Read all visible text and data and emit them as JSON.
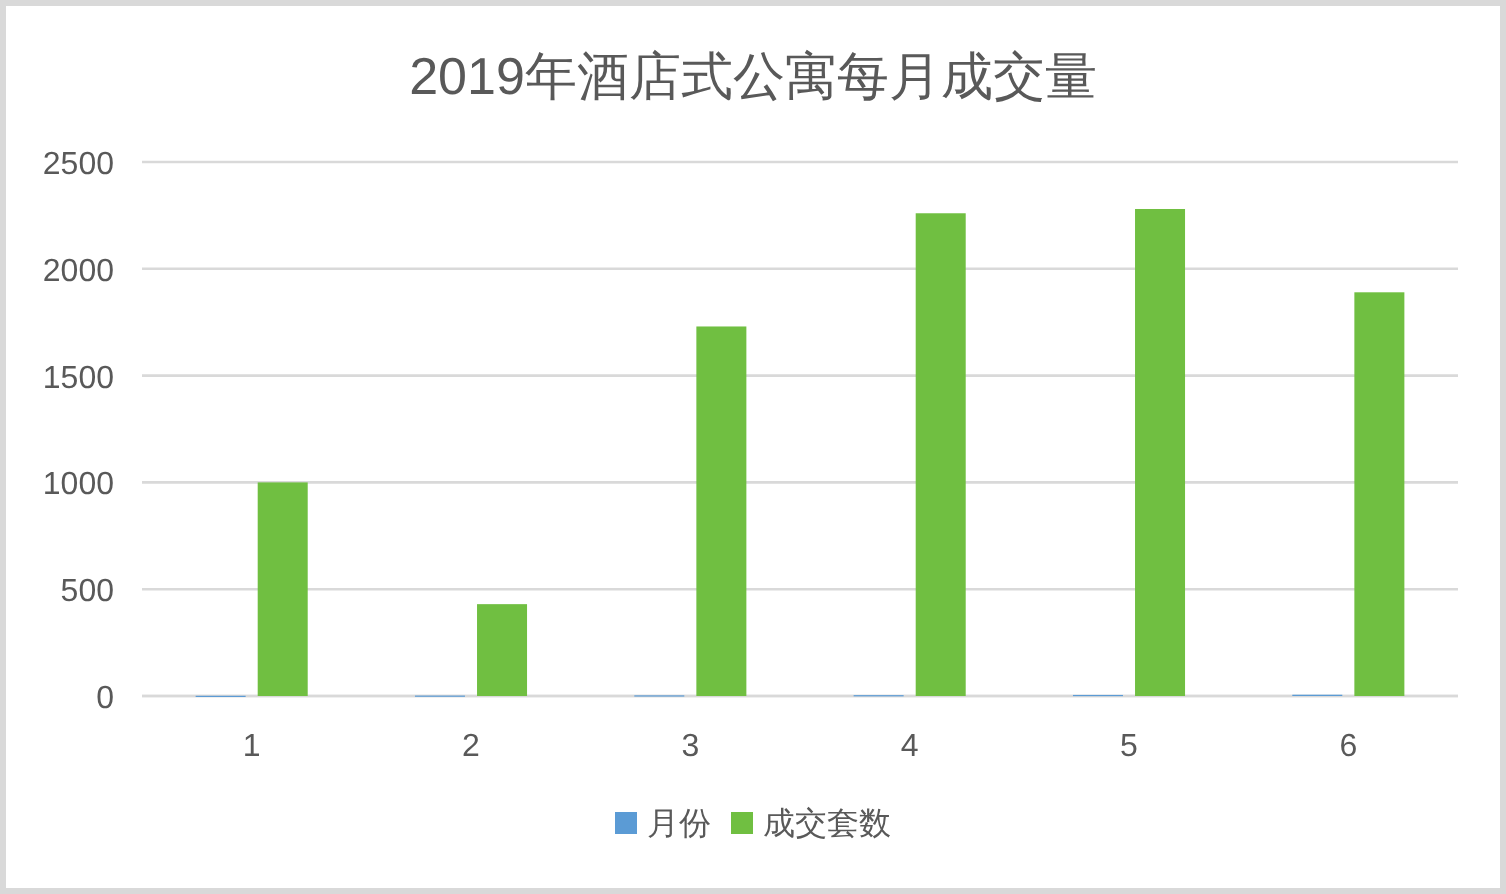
{
  "chart_data": {
    "type": "bar",
    "title": "2019年酒店式公寓每月成交量",
    "categories": [
      "1",
      "2",
      "3",
      "4",
      "5",
      "6"
    ],
    "series": [
      {
        "name": "月份",
        "color": "#5b9bd5",
        "values": [
          1,
          2,
          3,
          4,
          5,
          6
        ]
      },
      {
        "name": "成交套数",
        "color": "#70bf41",
        "values": [
          1000,
          430,
          1730,
          2260,
          2280,
          1890
        ]
      }
    ],
    "ylim": [
      0,
      2500
    ],
    "yticks": [
      0,
      500,
      1000,
      1500,
      2000,
      2500
    ],
    "grid": "y",
    "legend": "bottom"
  }
}
